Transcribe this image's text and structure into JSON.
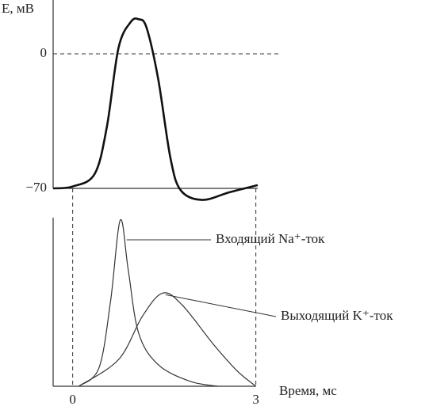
{
  "chart_data": [
    {
      "type": "line",
      "ylabel": "E, мВ",
      "color": "#111",
      "x": [
        -0.32,
        0,
        0.36,
        0.56,
        0.75,
        0.95,
        1.08,
        1.21,
        1.4,
        1.6,
        1.77,
        2.12,
        2.57,
        3.03
      ],
      "values": [
        -70,
        -69,
        -62.5,
        -38,
        3,
        16.5,
        18,
        13.6,
        -13,
        -54,
        -71,
        -76,
        -72,
        -68.3
      ],
      "xlim": [
        -0.32,
        3.42
      ],
      "ylim": [
        -70,
        28
      ],
      "yticks": [
        0,
        {
          "value": -70,
          "label": "−70"
        }
      ]
    },
    {
      "type": "line",
      "xlabel": "Время, мс",
      "xlim": [
        -0.32,
        3.42
      ],
      "ylim": [
        0,
        1
      ],
      "xticks": [
        0,
        3
      ],
      "series": [
        {
          "name": "Входящий Na⁺-ток",
          "color": "#333",
          "x": [
            0.1,
            0.43,
            0.62,
            0.78,
            0.91,
            1.08,
            1.4,
            1.92,
            2.38
          ],
          "values": [
            0,
            0.11,
            0.51,
            1.0,
            0.7,
            0.32,
            0.13,
            0.03,
            0
          ]
        },
        {
          "name": "Выходящий K⁺-ток",
          "color": "#333",
          "x": [
            0.1,
            0.75,
            1.14,
            1.47,
            1.79,
            2.31,
            2.7,
            3.0
          ],
          "values": [
            0,
            0.16,
            0.42,
            0.56,
            0.49,
            0.25,
            0.09,
            0
          ]
        }
      ]
    }
  ]
}
